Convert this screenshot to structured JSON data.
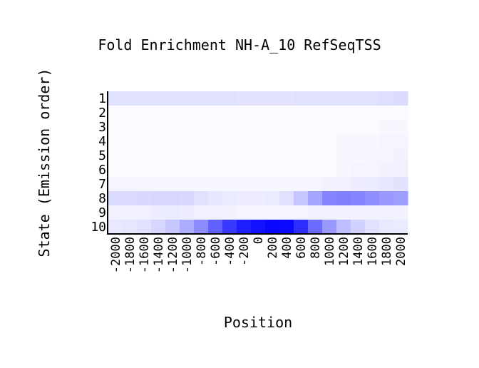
{
  "chart_data": {
    "type": "heatmap",
    "title": "Fold Enrichment NH-A_10 RefSeqTSS",
    "xlabel": "Position",
    "ylabel": "State (Emission order)",
    "x_tick_labels": [
      "-2000",
      "-1800",
      "-1600",
      "-1400",
      "-1200",
      "-1000",
      "-800",
      "-600",
      "-400",
      "-200",
      "0",
      "200",
      "400",
      "600",
      "800",
      "1000",
      "1200",
      "1400",
      "1600",
      "1800",
      "2000"
    ],
    "y_tick_labels": [
      "1",
      "2",
      "3",
      "4",
      "5",
      "6",
      "7",
      "8",
      "9",
      "10"
    ],
    "color_low": "#ffffff",
    "color_high": "#0000ff",
    "value_range": [
      0,
      1
    ],
    "rows": [
      [
        0.12,
        0.12,
        0.12,
        0.12,
        0.12,
        0.12,
        0.12,
        0.12,
        0.12,
        0.11,
        0.11,
        0.11,
        0.11,
        0.12,
        0.12,
        0.12,
        0.12,
        0.12,
        0.12,
        0.13,
        0.14
      ],
      [
        0.02,
        0.02,
        0.02,
        0.02,
        0.02,
        0.02,
        0.02,
        0.02,
        0.02,
        0.02,
        0.02,
        0.02,
        0.02,
        0.02,
        0.02,
        0.02,
        0.02,
        0.02,
        0.02,
        0.02,
        0.02
      ],
      [
        0.02,
        0.02,
        0.02,
        0.02,
        0.02,
        0.02,
        0.02,
        0.02,
        0.02,
        0.02,
        0.02,
        0.02,
        0.02,
        0.02,
        0.02,
        0.02,
        0.02,
        0.02,
        0.02,
        0.03,
        0.03
      ],
      [
        0.02,
        0.02,
        0.02,
        0.02,
        0.02,
        0.02,
        0.02,
        0.02,
        0.02,
        0.02,
        0.02,
        0.02,
        0.02,
        0.02,
        0.02,
        0.02,
        0.03,
        0.03,
        0.03,
        0.04,
        0.04
      ],
      [
        0.02,
        0.02,
        0.02,
        0.02,
        0.02,
        0.02,
        0.02,
        0.02,
        0.02,
        0.02,
        0.02,
        0.02,
        0.02,
        0.02,
        0.02,
        0.02,
        0.03,
        0.03,
        0.04,
        0.04,
        0.05
      ],
      [
        0.02,
        0.02,
        0.02,
        0.02,
        0.02,
        0.02,
        0.02,
        0.02,
        0.02,
        0.02,
        0.02,
        0.02,
        0.02,
        0.02,
        0.02,
        0.02,
        0.03,
        0.04,
        0.04,
        0.05,
        0.06
      ],
      [
        0.04,
        0.04,
        0.04,
        0.04,
        0.03,
        0.03,
        0.03,
        0.03,
        0.03,
        0.03,
        0.03,
        0.03,
        0.03,
        0.03,
        0.04,
        0.05,
        0.06,
        0.07,
        0.08,
        0.1,
        0.11
      ],
      [
        0.14,
        0.14,
        0.15,
        0.16,
        0.16,
        0.15,
        0.12,
        0.1,
        0.08,
        0.07,
        0.07,
        0.08,
        0.12,
        0.22,
        0.35,
        0.48,
        0.5,
        0.48,
        0.44,
        0.4,
        0.38
      ],
      [
        0.05,
        0.05,
        0.06,
        0.07,
        0.08,
        0.07,
        0.06,
        0.06,
        0.05,
        0.04,
        0.04,
        0.04,
        0.04,
        0.04,
        0.05,
        0.05,
        0.05,
        0.05,
        0.05,
        0.05,
        0.05
      ],
      [
        0.09,
        0.1,
        0.12,
        0.16,
        0.22,
        0.32,
        0.45,
        0.62,
        0.78,
        0.88,
        0.93,
        0.97,
        0.96,
        0.82,
        0.58,
        0.4,
        0.26,
        0.18,
        0.12,
        0.09,
        0.08
      ]
    ]
  }
}
